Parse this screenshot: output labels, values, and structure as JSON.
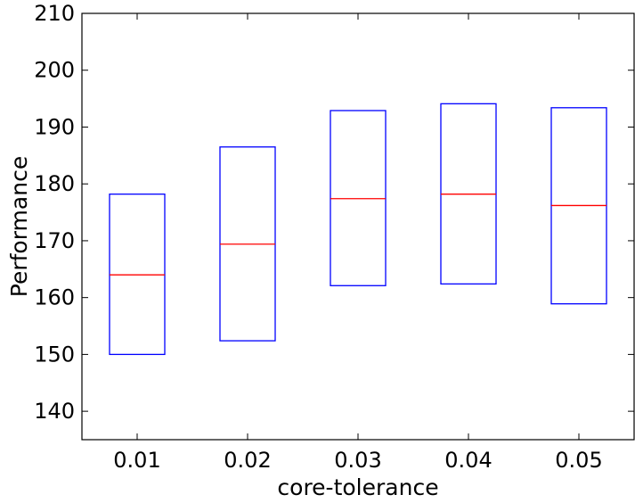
{
  "chart_data": {
    "type": "box",
    "xlabel": "core-tolerance",
    "ylabel": "Performance",
    "categories": [
      "0.01",
      "0.02",
      "0.03",
      "0.04",
      "0.05"
    ],
    "boxes": [
      {
        "category": "0.01",
        "q1": 150.0,
        "median": 164.0,
        "q3": 178.2
      },
      {
        "category": "0.02",
        "q1": 152.4,
        "median": 169.4,
        "q3": 186.5
      },
      {
        "category": "0.03",
        "q1": 162.1,
        "median": 177.4,
        "q3": 192.9
      },
      {
        "category": "0.04",
        "q1": 162.4,
        "median": 178.2,
        "q3": 194.1
      },
      {
        "category": "0.05",
        "q1": 158.9,
        "median": 176.2,
        "q3": 193.4
      }
    ],
    "ylim": [
      135,
      210
    ],
    "yticks": [
      140,
      150,
      160,
      170,
      180,
      190,
      200,
      210
    ],
    "xlim": [
      0.5,
      5.5
    ],
    "grid": false,
    "colors": {
      "box": "#0000ff",
      "median": "#ff0000",
      "axes": "#000000"
    }
  }
}
